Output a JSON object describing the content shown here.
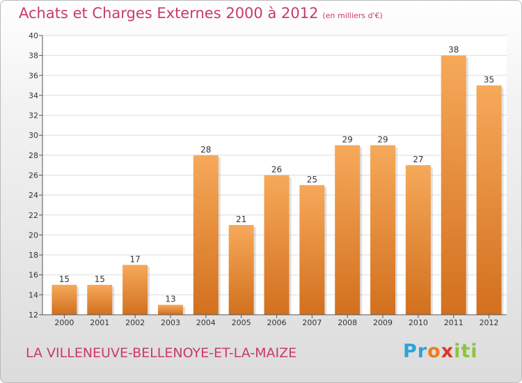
{
  "chart_data": {
    "type": "bar",
    "title": "Achats et Charges Externes 2000 à 2012",
    "subtitle": "(en milliers d'€)",
    "categories": [
      "2000",
      "2001",
      "2002",
      "2003",
      "2004",
      "2005",
      "2006",
      "2007",
      "2008",
      "2009",
      "2010",
      "2011",
      "2012"
    ],
    "values": [
      15,
      15,
      17,
      13,
      28,
      21,
      26,
      25,
      29,
      29,
      27,
      38,
      35
    ],
    "ylim": [
      12,
      40
    ],
    "yticks": [
      12,
      14,
      16,
      18,
      20,
      22,
      24,
      26,
      28,
      30,
      32,
      34,
      36,
      38,
      40
    ],
    "grid": true,
    "xlabel": "",
    "ylabel": "",
    "colors": {
      "bar_light": "#f6a95a",
      "bar_dark": "#d2701e",
      "grid": "#dddddd",
      "axis": "#555555"
    }
  },
  "location": "LA VILLENEUVE-BELLENOYE-ET-LA-MAIZE",
  "logo": {
    "letters": [
      {
        "char": "P",
        "color": "#2aa3dd"
      },
      {
        "char": "r",
        "color": "#2aa3dd"
      },
      {
        "char": "o",
        "color": "#f07a1e"
      },
      {
        "char": "x",
        "color": "#e2322a"
      },
      {
        "char": "i",
        "color": "#8cc43d"
      },
      {
        "char": "t",
        "color": "#8cc43d"
      },
      {
        "char": "i",
        "color": "#8cc43d"
      }
    ]
  }
}
